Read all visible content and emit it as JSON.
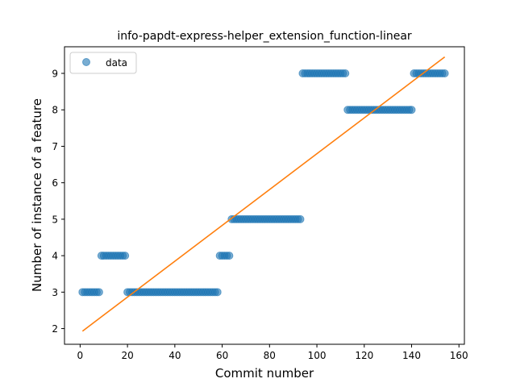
{
  "chart_data": {
    "type": "scatter",
    "title": "info-papdt-express-helper_extension_function-linear",
    "xlabel": "Commit number",
    "ylabel": "Number of instance of a feature",
    "xlim": [
      -6.6,
      162.3
    ],
    "ylim": [
      1.57,
      9.73
    ],
    "xticks": [
      0,
      20,
      40,
      60,
      80,
      100,
      120,
      140,
      160
    ],
    "yticks": [
      2,
      3,
      4,
      5,
      6,
      7,
      8,
      9
    ],
    "legend": {
      "position": "top-left",
      "entries": [
        "data"
      ]
    },
    "grid": false,
    "colors": {
      "data": "#1f77b4",
      "fit": "#ff7f0e"
    },
    "segments": [
      {
        "from": 1,
        "to": 9,
        "y": 3
      },
      {
        "from": 9,
        "to": 20,
        "y": 4
      },
      {
        "from": 20,
        "to": 59,
        "y": 3
      },
      {
        "from": 59,
        "to": 64,
        "y": 4
      },
      {
        "from": 64,
        "to": 94,
        "y": 5
      },
      {
        "from": 94,
        "to": 113,
        "y": 9
      },
      {
        "from": 113,
        "to": 141,
        "y": 8
      },
      {
        "from": 141,
        "to": 155,
        "y": 9
      }
    ],
    "fit_line": {
      "x": [
        1,
        154
      ],
      "y": [
        1.93,
        9.45
      ]
    }
  }
}
